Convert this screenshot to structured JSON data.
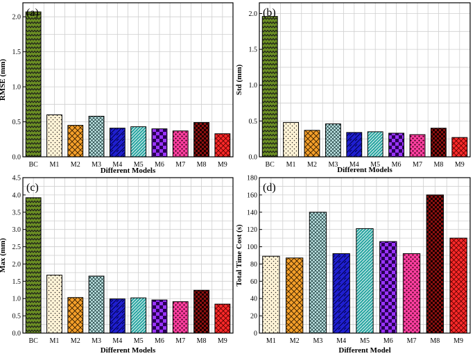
{
  "chart_data": [
    {
      "type": "bar",
      "panel_label": "(a)",
      "categories": [
        "BC",
        "M1",
        "M2",
        "M3",
        "M4",
        "M5",
        "M6",
        "M7",
        "M8",
        "M9"
      ],
      "values": [
        2.07,
        0.6,
        0.45,
        0.58,
        0.41,
        0.43,
        0.4,
        0.37,
        0.49,
        0.33
      ],
      "ylabel": "RMSE (mm)",
      "xlabel": "Different Models",
      "ylim": [
        0,
        2.2
      ],
      "yticks": [
        "0.0",
        "0.5",
        "1.0",
        "1.5",
        "2.0"
      ],
      "grid": true
    },
    {
      "type": "bar",
      "panel_label": "(b)",
      "categories": [
        "BC",
        "M1",
        "M2",
        "M3",
        "M4",
        "M5",
        "M6",
        "M7",
        "M8",
        "M9"
      ],
      "values": [
        1.96,
        0.48,
        0.37,
        0.46,
        0.34,
        0.35,
        0.33,
        0.31,
        0.4,
        0.27
      ],
      "ylabel": "Std (mm)",
      "xlabel": "Different Models",
      "ylim": [
        0,
        2.15
      ],
      "yticks": [
        "0.0",
        "0.5",
        "1.0",
        "1.5",
        "2.0"
      ],
      "grid": true
    },
    {
      "type": "bar",
      "panel_label": "(c)",
      "categories": [
        "BC",
        "M1",
        "M2",
        "M3",
        "M4",
        "M5",
        "M6",
        "M7",
        "M8",
        "M9"
      ],
      "values": [
        3.92,
        1.68,
        1.03,
        1.65,
        0.99,
        1.02,
        0.96,
        0.91,
        1.24,
        0.84
      ],
      "ylabel": "Max (mm)",
      "xlabel": "Different Models",
      "ylim": [
        0,
        4.5
      ],
      "yticks": [
        "0.0",
        "0.5",
        "1.0",
        "1.5",
        "2.0",
        "2.5",
        "3.0",
        "3.5",
        "4.0",
        "4.5"
      ],
      "grid": true
    },
    {
      "type": "bar",
      "panel_label": "(d)",
      "categories": [
        "M1",
        "M2",
        "M3",
        "M4",
        "M5",
        "M6",
        "M7",
        "M8",
        "M9"
      ],
      "values": [
        89,
        87,
        140,
        92,
        121,
        106,
        92,
        160,
        110
      ],
      "ylabel": "Total Time Cost (s)",
      "xlabel": "Different Model",
      "ylim": [
        0,
        180
      ],
      "yticks": [
        "0",
        "20",
        "40",
        "60",
        "80",
        "100",
        "120",
        "140",
        "160",
        "180"
      ],
      "grid": true
    }
  ],
  "model_colors": {
    "BC": "#6b8e23",
    "M1": "#fff3d6",
    "M2": "#f5a02a",
    "M3": "#c6eded",
    "M4": "#1f1fd0",
    "M5": "#2aa6a2",
    "M6": "#9933ff",
    "M7": "#ff3fa0",
    "M8": "#8b1010",
    "M9": "#ff2a2a"
  }
}
